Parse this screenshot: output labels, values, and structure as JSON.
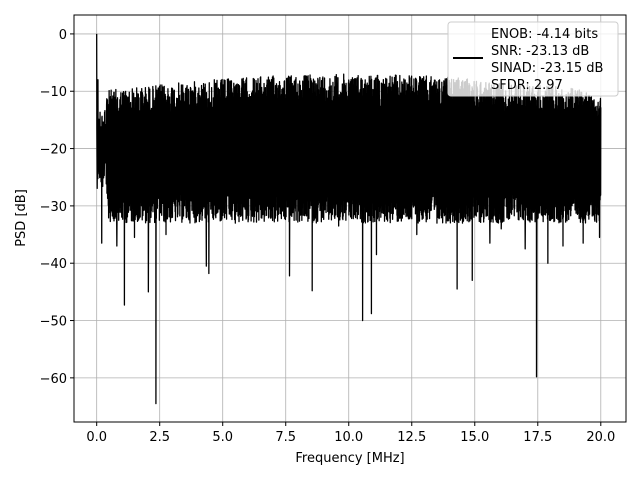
{
  "chart_data": {
    "type": "line",
    "title": "",
    "xlabel": "Frequency [MHz]",
    "ylabel": "PSD [dB]",
    "xlim": [
      -0.9,
      21.0
    ],
    "ylim": [
      -67.7,
      3.3
    ],
    "xticks": [
      0.0,
      2.5,
      5.0,
      7.5,
      10.0,
      12.5,
      15.0,
      17.5,
      20.0
    ],
    "xtick_labels": [
      "0.0",
      "2.5",
      "5.0",
      "7.5",
      "10.0",
      "12.5",
      "15.0",
      "17.5",
      "20.0"
    ],
    "yticks": [
      0,
      -10,
      -20,
      -30,
      -40,
      -50,
      -60
    ],
    "ytick_labels": [
      "0",
      "−10",
      "−20",
      "−30",
      "−40",
      "−50",
      "−60"
    ],
    "grid": true,
    "legend_position": "upper right",
    "legend": [
      "ENOB: -4.14 bits",
      "SNR: -23.13 dB",
      "SINAD: -23.15 dB",
      "SFDR: 2.97"
    ],
    "series": [
      {
        "color": "#000000",
        "x_range": [
          0.0,
          20.0
        ],
        "typical_band_db": [
          -30,
          -10
        ],
        "peaks": [
          {
            "x": 0.0,
            "y": 0.0
          },
          {
            "x": 0.05,
            "y": -8.0
          }
        ],
        "dips": [
          {
            "x": 0.2,
            "y": -36.5
          },
          {
            "x": 0.8,
            "y": -37.0
          },
          {
            "x": 1.1,
            "y": -47.3
          },
          {
            "x": 1.5,
            "y": -35.5
          },
          {
            "x": 2.05,
            "y": -45.0
          },
          {
            "x": 2.35,
            "y": -64.5
          },
          {
            "x": 2.75,
            "y": -35.0
          },
          {
            "x": 4.35,
            "y": -40.5
          },
          {
            "x": 4.45,
            "y": -41.8
          },
          {
            "x": 5.5,
            "y": -33.0
          },
          {
            "x": 7.65,
            "y": -42.2
          },
          {
            "x": 8.55,
            "y": -44.8
          },
          {
            "x": 9.6,
            "y": -33.5
          },
          {
            "x": 10.55,
            "y": -50.0
          },
          {
            "x": 10.9,
            "y": -48.8
          },
          {
            "x": 11.1,
            "y": -38.5
          },
          {
            "x": 12.7,
            "y": -35.0
          },
          {
            "x": 13.5,
            "y": -33.0
          },
          {
            "x": 14.3,
            "y": -44.5
          },
          {
            "x": 14.9,
            "y": -43.0
          },
          {
            "x": 15.6,
            "y": -36.5
          },
          {
            "x": 16.05,
            "y": -34.0
          },
          {
            "x": 17.0,
            "y": -37.5
          },
          {
            "x": 17.45,
            "y": -59.8
          },
          {
            "x": 17.9,
            "y": -40.0
          },
          {
            "x": 18.5,
            "y": -37.0
          },
          {
            "x": 19.3,
            "y": -36.5
          },
          {
            "x": 19.95,
            "y": -35.5
          }
        ]
      }
    ]
  }
}
